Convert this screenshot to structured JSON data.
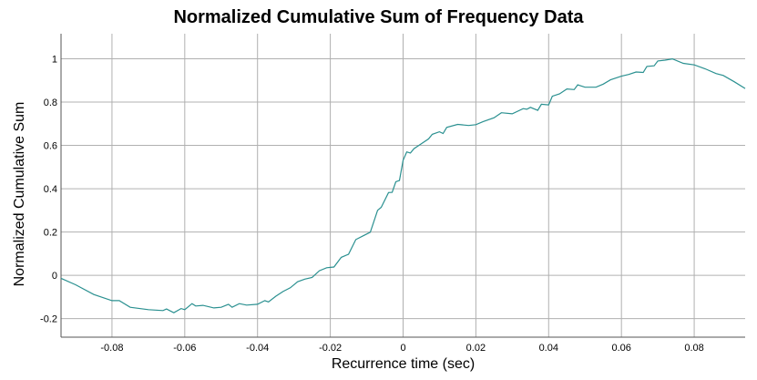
{
  "chart_data": {
    "type": "line",
    "title": "Normalized Cumulative Sum of Frequency Data",
    "xlabel": "Recurrence time (sec)",
    "ylabel": "Normalized Cumulative Sum",
    "xlim": [
      -0.094,
      0.094
    ],
    "ylim": [
      -0.286,
      1.116
    ],
    "xticks": [
      -0.08,
      -0.06,
      -0.04,
      -0.02,
      0,
      0.02,
      0.04,
      0.06,
      0.08
    ],
    "xtick_labels": [
      "-0.08",
      "-0.06",
      "-0.04",
      "-0.02",
      "0",
      "0.02",
      "0.04",
      "0.06",
      "0.08"
    ],
    "yticks": [
      -0.2,
      0,
      0.2,
      0.4,
      0.6,
      0.8,
      1
    ],
    "ytick_labels": [
      "-0.2",
      "0",
      "0.2",
      "0.4",
      "0.6",
      "0.8",
      "1"
    ],
    "grid": true,
    "line_color": "#2a9090",
    "grid_color": "#b0b0b0",
    "series": [
      {
        "x": [
          -0.094,
          -0.09,
          -0.085,
          -0.08,
          -0.078,
          -0.075,
          -0.07,
          -0.066,
          -0.065,
          -0.063,
          -0.061,
          -0.06,
          -0.058,
          -0.057,
          -0.055,
          -0.052,
          -0.05,
          -0.048,
          -0.047,
          -0.045,
          -0.043,
          -0.04,
          -0.038,
          -0.037,
          -0.035,
          -0.033,
          -0.031,
          -0.029,
          -0.027,
          -0.025,
          -0.023,
          -0.021,
          -0.019,
          -0.017,
          -0.015,
          -0.013,
          -0.011,
          -0.009,
          -0.007,
          -0.006,
          -0.004,
          -0.003,
          -0.002,
          -0.001,
          0,
          0.001,
          0.002,
          0.003,
          0.005,
          0.007,
          0.008,
          0.01,
          0.011,
          0.012,
          0.015,
          0.018,
          0.02,
          0.022,
          0.025,
          0.027,
          0.03,
          0.033,
          0.034,
          0.035,
          0.037,
          0.038,
          0.04,
          0.041,
          0.043,
          0.045,
          0.047,
          0.048,
          0.05,
          0.053,
          0.055,
          0.057,
          0.06,
          0.062,
          0.064,
          0.066,
          0.067,
          0.069,
          0.07,
          0.072,
          0.074,
          0.077,
          0.08,
          0.083,
          0.086,
          0.088,
          0.091,
          0.094
        ],
        "y": [
          -0.014,
          -0.044,
          -0.089,
          -0.117,
          -0.117,
          -0.148,
          -0.159,
          -0.163,
          -0.156,
          -0.173,
          -0.154,
          -0.159,
          -0.131,
          -0.142,
          -0.139,
          -0.151,
          -0.148,
          -0.134,
          -0.148,
          -0.131,
          -0.138,
          -0.134,
          -0.117,
          -0.123,
          -0.097,
          -0.075,
          -0.058,
          -0.03,
          -0.018,
          -0.01,
          0.021,
          0.035,
          0.038,
          0.083,
          0.097,
          0.165,
          0.182,
          0.199,
          0.3,
          0.314,
          0.382,
          0.383,
          0.432,
          0.438,
          0.531,
          0.57,
          0.565,
          0.585,
          0.608,
          0.63,
          0.651,
          0.663,
          0.655,
          0.683,
          0.697,
          0.692,
          0.696,
          0.71,
          0.728,
          0.751,
          0.746,
          0.77,
          0.767,
          0.776,
          0.762,
          0.79,
          0.787,
          0.827,
          0.838,
          0.861,
          0.858,
          0.88,
          0.869,
          0.869,
          0.883,
          0.903,
          0.92,
          0.928,
          0.939,
          0.937,
          0.965,
          0.968,
          0.99,
          0.994,
          1.0,
          0.979,
          0.972,
          0.954,
          0.932,
          0.923,
          0.894,
          0.863
        ]
      }
    ]
  }
}
